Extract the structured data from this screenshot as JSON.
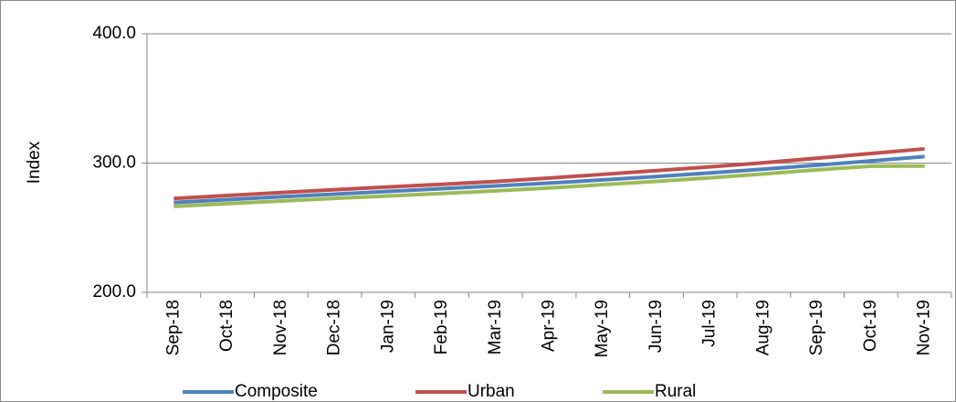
{
  "chart_data": {
    "type": "line",
    "y_label": "Index",
    "categories": [
      "Sep-18",
      "Oct-18",
      "Nov-18",
      "Dec-18",
      "Jan-19",
      "Feb-19",
      "Mar-19",
      "Apr-19",
      "May-19",
      "Jun-19",
      "Jul-19",
      "Aug-19",
      "Sep-19",
      "Oct-19",
      "Nov-19"
    ],
    "series": [
      {
        "name": "Composite",
        "color": "#4f81bd",
        "values": [
          269.5,
          271.7,
          273.9,
          276.0,
          278.1,
          280.2,
          282.3,
          284.5,
          287.0,
          289.6,
          292.4,
          295.3,
          298.4,
          301.7,
          305.0
        ]
      },
      {
        "name": "Urban",
        "color": "#c0504d",
        "values": [
          272.6,
          274.9,
          277.2,
          279.4,
          281.5,
          283.6,
          285.8,
          288.4,
          291.3,
          294.2,
          297.1,
          300.3,
          303.8,
          307.4,
          311.0
        ]
      },
      {
        "name": "Rural",
        "color": "#9bbb59",
        "values": [
          266.5,
          268.6,
          270.7,
          272.7,
          274.6,
          276.5,
          278.5,
          280.7,
          283.3,
          285.9,
          288.6,
          291.6,
          294.8,
          297.6,
          297.7
        ]
      }
    ],
    "ylim": [
      200,
      400
    ],
    "yticks": [
      {
        "value": 200,
        "label": "200.0"
      },
      {
        "value": 300,
        "label": "300.0"
      },
      {
        "value": 400,
        "label": "400.0"
      }
    ],
    "grid": true,
    "legend": "bottom"
  }
}
